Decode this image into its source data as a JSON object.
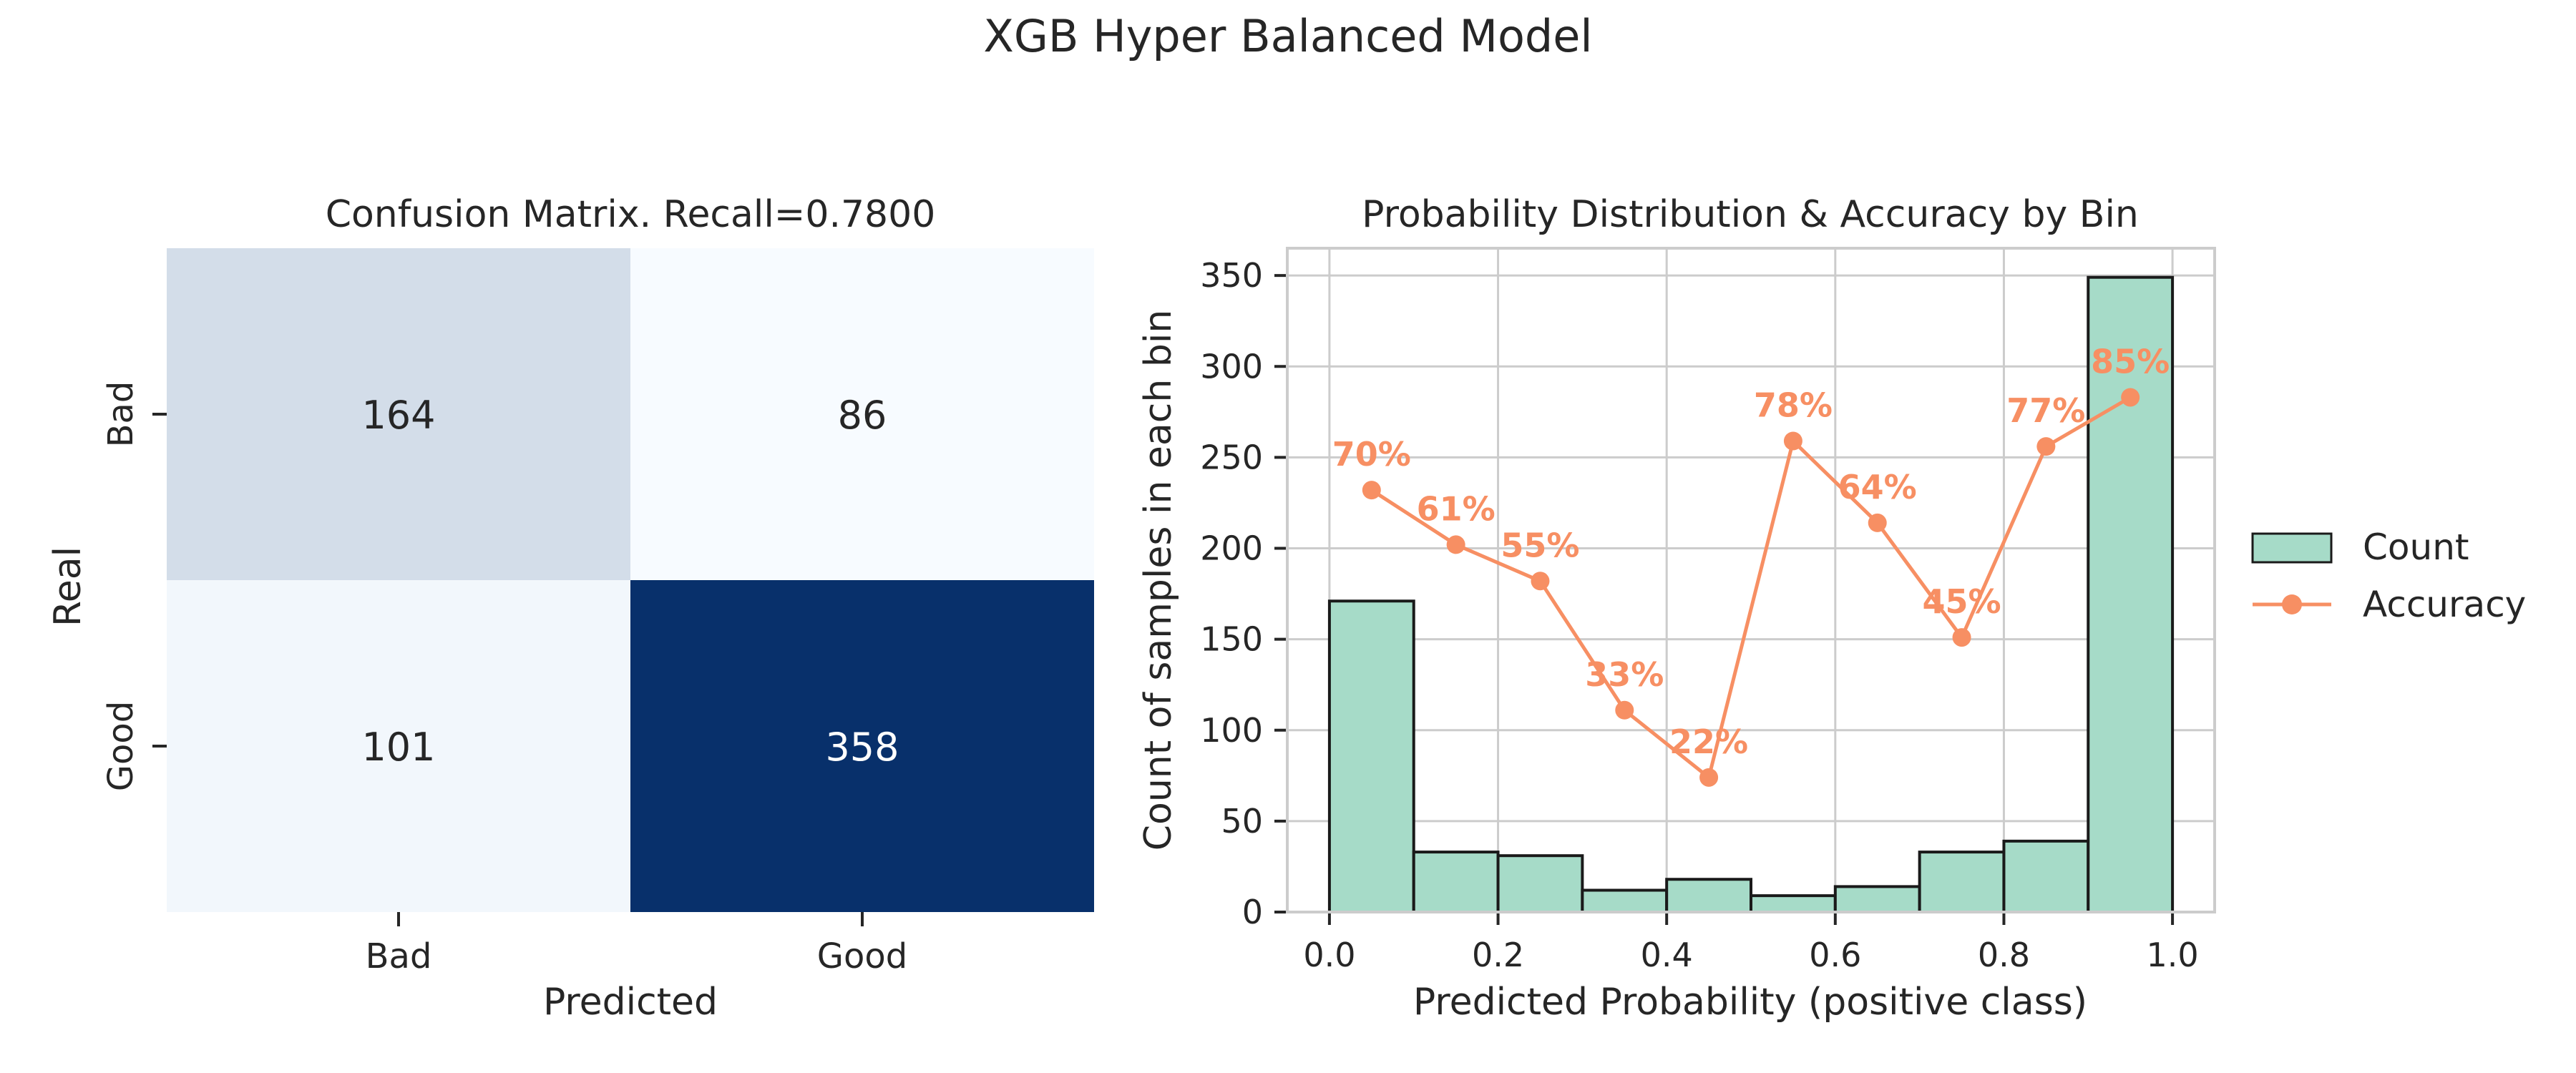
{
  "figure": {
    "title": "XGB Hyper Balanced Model"
  },
  "colors": {
    "background": "#ffffff",
    "cm_low": "#f7fbff",
    "cm_high": "#08306b",
    "bar_fill": "#a6dbc8",
    "bar_edge": "#1a1a1a",
    "accuracy_line": "#f78f63",
    "grid": "#cccccc",
    "text": "#262626"
  },
  "chart_data": [
    {
      "type": "heatmap",
      "title": "Confusion Matrix. Recall=0.7800",
      "xlabel": "Predicted",
      "ylabel": "Real",
      "x_categories": [
        "Bad",
        "Good"
      ],
      "y_categories": [
        "Bad",
        "Good"
      ],
      "values": [
        [
          164,
          86
        ],
        [
          101,
          358
        ]
      ],
      "colormap": "Blues",
      "colorbar": false
    },
    {
      "type": "bar",
      "title": "Probability Distribution & Accuracy by Bin",
      "xlabel": "Predicted Probability (positive class)",
      "ylabel": "Count of samples in each bin",
      "xlim": [
        -0.05,
        1.05
      ],
      "ylim": [
        0,
        365
      ],
      "x_ticks": [
        "0.0",
        "0.2",
        "0.4",
        "0.6",
        "0.8",
        "1.0"
      ],
      "x_tick_values": [
        0,
        0.2,
        0.4,
        0.6,
        0.8,
        1.0
      ],
      "y_ticks": [
        "0",
        "50",
        "100",
        "150",
        "200",
        "250",
        "300",
        "350"
      ],
      "y_tick_values": [
        0,
        50,
        100,
        150,
        200,
        250,
        300,
        350
      ],
      "grid": true,
      "legend_position": "right-outside",
      "bin_edges": [
        0.0,
        0.1,
        0.2,
        0.3,
        0.4,
        0.5,
        0.6,
        0.7,
        0.8,
        0.9,
        1.0
      ],
      "series": [
        {
          "name": "Count",
          "kind": "bar",
          "values": [
            171,
            33,
            31,
            12,
            18,
            9,
            14,
            33,
            39,
            349
          ]
        },
        {
          "name": "Accuracy",
          "kind": "line",
          "x": [
            0.05,
            0.15,
            0.25,
            0.35,
            0.45,
            0.55,
            0.65,
            0.75,
            0.85,
            0.95
          ],
          "y": [
            232,
            202,
            182,
            111,
            74,
            259,
            214,
            151,
            256,
            283
          ],
          "labels": [
            "70%",
            "61%",
            "55%",
            "33%",
            "22%",
            "78%",
            "64%",
            "45%",
            "77%",
            "85%"
          ]
        }
      ]
    }
  ]
}
